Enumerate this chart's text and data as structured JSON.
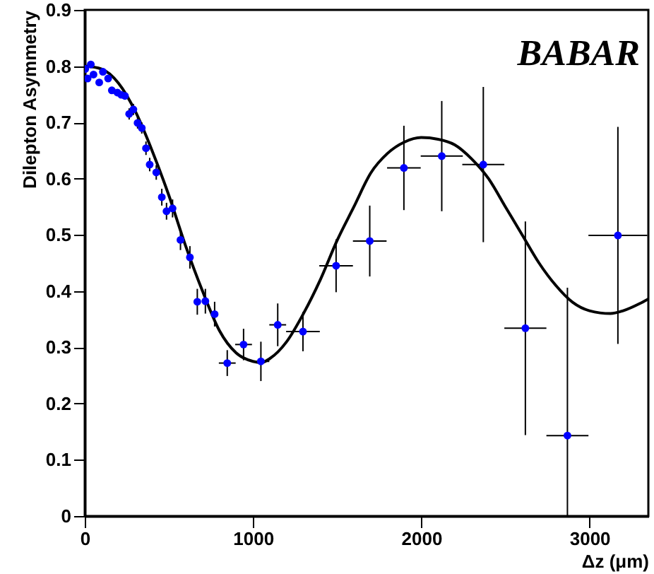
{
  "chart_data": {
    "type": "scatter",
    "xlabel": "Δz (μm)",
    "ylabel": "Dilepton Asymmetry",
    "annotations": [
      "BABAR"
    ],
    "xlim": [
      0,
      3350
    ],
    "xticks": [
      0,
      1000,
      2000,
      3000
    ],
    "ylim": [
      0,
      0.9
    ],
    "yticks": [
      0,
      0.1,
      0.2,
      0.3,
      0.4,
      0.5,
      0.6,
      0.7,
      0.8,
      0.9
    ],
    "grid": false,
    "series": [
      {
        "marker": "circle",
        "color": "#0000ff",
        "x": [
          3,
          17,
          36,
          52,
          86,
          108,
          139,
          161,
          194,
          217,
          239,
          264,
          289,
          314,
          339,
          364,
          386,
          425,
          458,
          486,
          522,
          569,
          625,
          669,
          717,
          772,
          847,
          944,
          1047,
          1147,
          1297,
          1494,
          1694,
          1897,
          2122,
          2369,
          2619,
          2869,
          3169
        ],
        "values": [
          0.795,
          0.778,
          0.803,
          0.785,
          0.771,
          0.79,
          0.778,
          0.757,
          0.753,
          0.749,
          0.747,
          0.715,
          0.723,
          0.699,
          0.69,
          0.654,
          0.625,
          0.611,
          0.567,
          0.542,
          0.547,
          0.491,
          0.46,
          0.381,
          0.382,
          0.359,
          0.272,
          0.305,
          0.275,
          0.34,
          0.328,
          0.445,
          0.489,
          0.619,
          0.64,
          0.625,
          0.334,
          0.143,
          0.499
        ],
        "errors": [
          null,
          null,
          null,
          null,
          null,
          null,
          null,
          null,
          null,
          null,
          null,
          0.01,
          0.01,
          0.01,
          0.01,
          0.012,
          0.012,
          0.013,
          0.015,
          0.015,
          0.016,
          0.018,
          0.02,
          0.023,
          0.022,
          0.022,
          0.023,
          0.028,
          0.035,
          0.038,
          0.035,
          0.047,
          0.063,
          0.075,
          0.098,
          0.138,
          0.19,
          [
            0,
            0.406
          ],
          0.193
        ],
        "xerrors": [
          null,
          null,
          null,
          null,
          null,
          null,
          null,
          null,
          null,
          null,
          null,
          null,
          null,
          null,
          null,
          null,
          null,
          null,
          null,
          null,
          null,
          null,
          null,
          null,
          null,
          null,
          50,
          50,
          50,
          50,
          100,
          100,
          100,
          100,
          125,
          125,
          125,
          125,
          175
        ]
      },
      {
        "type": "line",
        "color": "#000000",
        "x": [
          0,
          100,
          200,
          300,
          400,
          500,
          600,
          700,
          800,
          900,
          1000,
          1050,
          1100,
          1200,
          1300,
          1400,
          1500,
          1600,
          1700,
          1800,
          1900,
          2000,
          2100,
          2200,
          2300,
          2400,
          2500,
          2600,
          2700,
          2800,
          2900,
          3000,
          3125,
          3200,
          3300,
          3350
        ],
        "values": [
          0.8,
          0.795,
          0.77,
          0.72,
          0.65,
          0.57,
          0.48,
          0.4,
          0.33,
          0.29,
          0.275,
          0.273,
          0.28,
          0.31,
          0.36,
          0.42,
          0.49,
          0.55,
          0.61,
          0.645,
          0.665,
          0.673,
          0.67,
          0.66,
          0.635,
          0.6,
          0.55,
          0.5,
          0.45,
          0.41,
          0.38,
          0.365,
          0.36,
          0.365,
          0.378,
          0.386
        ]
      }
    ]
  }
}
